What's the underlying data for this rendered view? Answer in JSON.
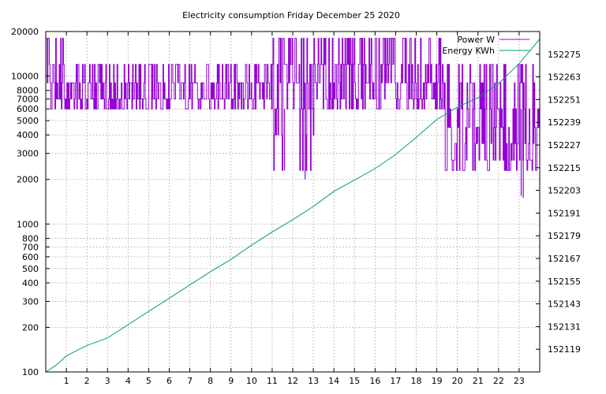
{
  "chart_data": {
    "type": "line",
    "title": "Electricity consumption Friday December 25 2020",
    "x": {
      "range": [
        0,
        24
      ],
      "tick_labels": [
        "1",
        "2",
        "3",
        "4",
        "5",
        "6",
        "7",
        "8",
        "9",
        "10",
        "11",
        "12",
        "13",
        "14",
        "15",
        "16",
        "17",
        "18",
        "19",
        "20",
        "21",
        "22",
        "23"
      ],
      "tick_values": [
        1,
        2,
        3,
        4,
        5,
        6,
        7,
        8,
        9,
        10,
        11,
        12,
        13,
        14,
        15,
        16,
        17,
        18,
        19,
        20,
        21,
        22,
        23
      ]
    },
    "y_left": {
      "scale": "log",
      "range": [
        100,
        20000
      ],
      "tick_labels": [
        "100",
        "200",
        "300",
        "400",
        "500",
        "600",
        "700",
        "800",
        "1000",
        "2000",
        "3000",
        "4000",
        "5000",
        "6000",
        "7000",
        "8000",
        "10000",
        "20000"
      ],
      "tick_values": [
        100,
        200,
        300,
        400,
        500,
        600,
        700,
        800,
        1000,
        2000,
        3000,
        4000,
        5000,
        6000,
        7000,
        8000,
        10000,
        20000
      ]
    },
    "y_right": {
      "range": [
        152107,
        152287
      ],
      "tick_labels": [
        "152119",
        "152131",
        "152143",
        "152155",
        "152167",
        "152179",
        "152191",
        "152203",
        "152215",
        "152227",
        "152239",
        "152251",
        "152263",
        "152275"
      ],
      "tick_values": [
        152119,
        152131,
        152143,
        152155,
        152167,
        152179,
        152191,
        152203,
        152215,
        152227,
        152239,
        152251,
        152263,
        152275
      ]
    },
    "grid": true,
    "legend_position": "top-right",
    "series": [
      {
        "name": "Power W",
        "color": "#9400d3",
        "axis": "left",
        "style": "steps",
        "segments": [
          {
            "x0": 0.0,
            "x1": 1.0,
            "levels": [
              6000,
              7000,
              9000,
              12000,
              18000
            ]
          },
          {
            "x0": 1.0,
            "x1": 3.0,
            "levels": [
              6000,
              7000,
              9000,
              12000
            ]
          },
          {
            "x0": 3.0,
            "x1": 11.0,
            "levels": [
              6000,
              7000,
              9000,
              12000
            ]
          },
          {
            "x0": 11.0,
            "x1": 13.0,
            "levels": [
              2300,
              4000,
              6000,
              9000,
              12000,
              18000
            ]
          },
          {
            "x0": 13.0,
            "x1": 19.2,
            "levels": [
              6000,
              7000,
              9000,
              12000,
              18000
            ]
          },
          {
            "x0": 19.2,
            "x1": 24.0,
            "levels": [
              2300,
              2700,
              3500,
              4500,
              6000,
              9000,
              12000
            ]
          }
        ],
        "low_dips": [
          {
            "x": 11.6,
            "y": 2300
          },
          {
            "x": 12.6,
            "y": 2000
          },
          {
            "x": 23.2,
            "y": 1500
          },
          {
            "x": 23.1,
            "y": 1550
          }
        ]
      },
      {
        "name": "Energy KWh",
        "color": "#009e73",
        "axis": "right",
        "style": "line",
        "x": [
          0,
          0.5,
          1,
          2,
          3,
          4,
          5,
          6,
          7,
          8,
          9,
          10,
          11,
          12,
          13,
          14,
          15,
          16,
          17,
          18,
          19,
          20,
          21,
          22,
          23,
          24
        ],
        "y": [
          152107.0,
          152110.5,
          152115.5,
          152121.0,
          152125.0,
          152132.0,
          152139.0,
          152146.0,
          152153.0,
          152160.0,
          152166.5,
          152174.0,
          152181.0,
          152187.5,
          152194.5,
          152202.5,
          152208.5,
          152214.5,
          152222.0,
          152231.0,
          152240.5,
          152247.0,
          152252.0,
          152259.5,
          152270.0,
          152283.0
        ]
      }
    ]
  }
}
